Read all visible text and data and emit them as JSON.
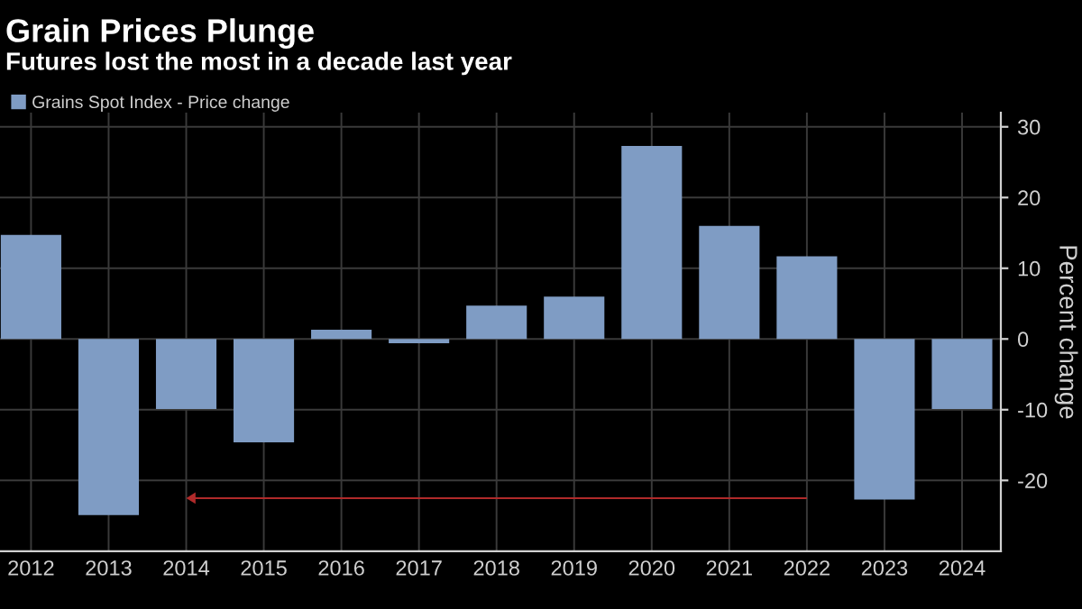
{
  "chart_data": {
    "type": "bar",
    "title": "Grain Prices Plunge",
    "subtitle": "Futures lost the most in a decade last year",
    "ylabel": "Percent change",
    "categories": [
      "2012",
      "2013",
      "2014",
      "2015",
      "2016",
      "2017",
      "2018",
      "2019",
      "2020",
      "2021",
      "2022",
      "2023",
      "2024"
    ],
    "series": [
      {
        "name": "Grains Spot Index - Price change",
        "color": "#7f9cc4",
        "values": [
          14.7,
          -24.9,
          -9.9,
          -14.6,
          1.3,
          -0.6,
          4.7,
          6.0,
          27.3,
          16.0,
          11.7,
          -22.7,
          -9.9
        ]
      }
    ],
    "ylim": [
      -30,
      32
    ],
    "yticks": [
      -20,
      -10,
      0,
      10,
      20,
      30
    ],
    "grid": true,
    "legend": "top left"
  }
}
